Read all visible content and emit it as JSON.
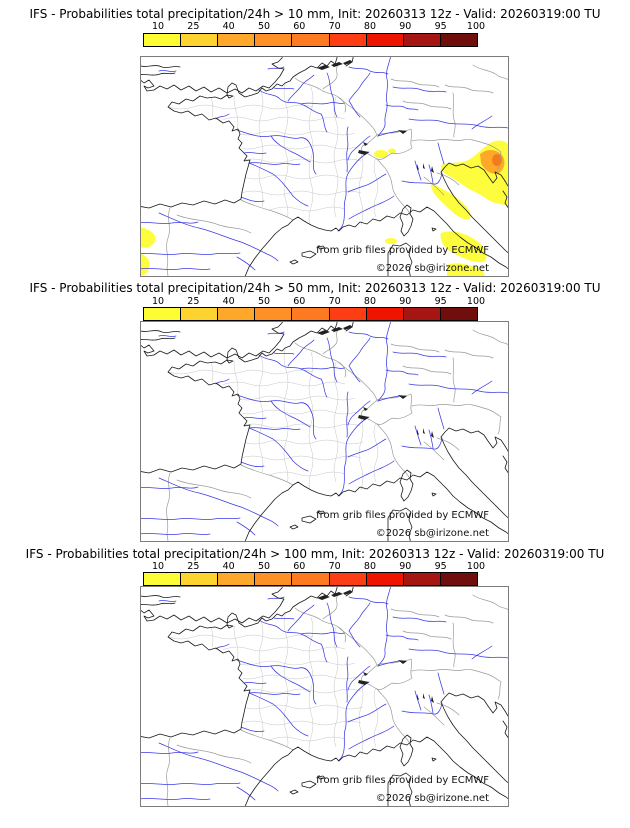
{
  "panels": [
    {
      "title": "IFS - Probabilities total precipitation/24h > 10 mm, Init: 20260313 12z - Valid: 20260319:00 TU",
      "has_precip_areas": true
    },
    {
      "title": "IFS - Probabilities total precipitation/24h > 50 mm, Init: 20260313 12z - Valid: 20260319:00 TU",
      "has_precip_areas": false
    },
    {
      "title": "IFS - Probabilities total precipitation/24h > 100 mm, Init: 20260313 12z - Valid: 20260319:00 TU",
      "has_precip_areas": false
    }
  ],
  "colorbar": {
    "ticks": [
      "10",
      "25",
      "40",
      "50",
      "60",
      "70",
      "80",
      "90",
      "95",
      "100"
    ],
    "colors": [
      "#fdfd35",
      "#fdd32f",
      "#fda82a",
      "#fd9026",
      "#fd7a20",
      "#fd3d14",
      "#ee1400",
      "#a51511",
      "#6f0e0c"
    ]
  },
  "credits": {
    "provider": "from grib files provided by ECMWF",
    "copyright": "©2026 sb@irizone.net"
  },
  "map_colors": {
    "river": "#3a3ae6",
    "coastline": "#1a1a1a",
    "department_border": "#c5c5c5",
    "country_border": "#9a9a9a",
    "frame": "#7c7c7c",
    "precip_yellow": "#fdfd3d",
    "precip_orange": "#fda829",
    "precip_deep_orange": "#f07c1c"
  }
}
